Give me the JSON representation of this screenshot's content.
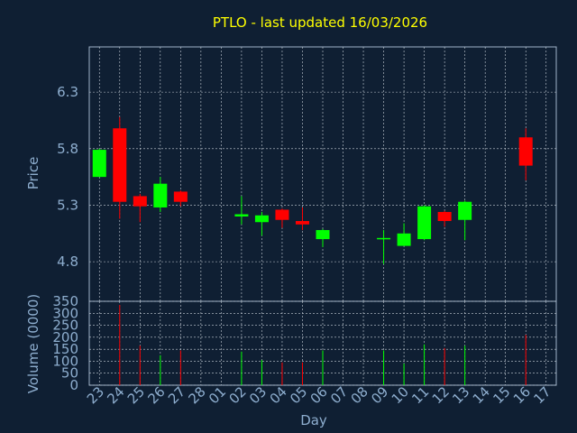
{
  "chart_data": {
    "title": "PTLO - last updated 16/03/2026",
    "xlabel": "Day",
    "ylabel_price": "Price",
    "ylabel_volume": "Volume (0000)",
    "categories": [
      "23",
      "24",
      "25",
      "26",
      "27",
      "28",
      "01",
      "02",
      "03",
      "04",
      "05",
      "06",
      "07",
      "08",
      "09",
      "10",
      "11",
      "12",
      "13",
      "14",
      "15",
      "16",
      "17"
    ],
    "price_ylim": [
      4.45,
      6.7
    ],
    "price_ticks": [
      "6.3",
      "5.8",
      "5.3",
      "4.8"
    ],
    "price_tick_values": [
      6.3,
      5.8,
      5.3,
      4.8
    ],
    "volume_ylim": [
      0,
      350
    ],
    "volume_ticks": [
      "350",
      "300",
      "250",
      "200",
      "150",
      "100",
      "50",
      "0"
    ],
    "volume_tick_values": [
      350,
      300,
      250,
      200,
      150,
      100,
      50,
      0
    ],
    "up_color": "#00ff00",
    "down_color": "#ff0000",
    "grid": true,
    "candles": [
      {
        "x": "23",
        "open": 5.55,
        "close": 5.79,
        "high": 5.8,
        "low": 5.55,
        "volume": 0
      },
      {
        "x": "24",
        "open": 5.98,
        "close": 5.33,
        "high": 6.08,
        "low": 5.18,
        "volume": 335
      },
      {
        "x": "25",
        "open": 5.38,
        "close": 5.29,
        "high": 5.4,
        "low": 5.15,
        "volume": 165
      },
      {
        "x": "26",
        "open": 5.28,
        "close": 5.49,
        "high": 5.55,
        "low": 5.24,
        "volume": 125
      },
      {
        "x": "27",
        "open": 5.42,
        "close": 5.33,
        "high": 5.43,
        "low": 5.29,
        "volume": 145
      },
      {
        "x": "02",
        "open": 5.2,
        "close": 5.22,
        "high": 5.38,
        "low": 5.13,
        "volume": 140
      },
      {
        "x": "03",
        "open": 5.15,
        "close": 5.21,
        "high": 5.24,
        "low": 5.03,
        "volume": 105
      },
      {
        "x": "04",
        "open": 5.26,
        "close": 5.17,
        "high": 5.27,
        "low": 5.1,
        "volume": 95
      },
      {
        "x": "05",
        "open": 5.16,
        "close": 5.13,
        "high": 5.28,
        "low": 5.08,
        "volume": 95
      },
      {
        "x": "06",
        "open": 5.0,
        "close": 5.08,
        "high": 5.09,
        "low": 4.93,
        "volume": 145
      },
      {
        "x": "09",
        "open": 5.0,
        "close": 5.01,
        "high": 5.08,
        "low": 4.78,
        "volume": 145
      },
      {
        "x": "10",
        "open": 4.94,
        "close": 5.05,
        "high": 5.14,
        "low": 4.94,
        "volume": 90
      },
      {
        "x": "11",
        "open": 5.0,
        "close": 5.29,
        "high": 5.3,
        "low": 4.99,
        "volume": 170
      },
      {
        "x": "12",
        "open": 5.24,
        "close": 5.16,
        "high": 5.25,
        "low": 5.11,
        "volume": 155
      },
      {
        "x": "13",
        "open": 5.17,
        "close": 5.33,
        "high": 5.34,
        "low": 4.99,
        "volume": 165
      },
      {
        "x": "16",
        "open": 5.9,
        "close": 5.65,
        "high": 5.98,
        "low": 5.52,
        "volume": 210
      }
    ]
  }
}
